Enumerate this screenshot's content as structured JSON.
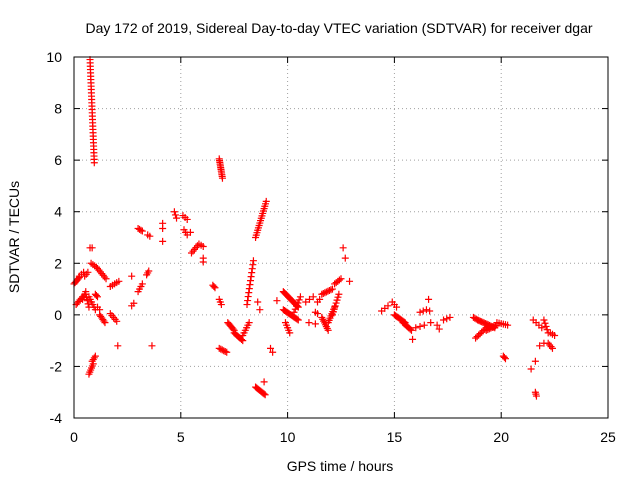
{
  "chart_data": {
    "type": "scatter",
    "title": "Day 172 of 2019, Sidereal Day-to-day VTEC variation (SDTVAR) for receiver dgar",
    "xlabel": "GPS time / hours",
    "ylabel": "SDTVAR / TECUs",
    "xlim": [
      0,
      25
    ],
    "ylim": [
      -4,
      10
    ],
    "xticks": [
      0,
      5,
      10,
      15,
      20,
      25
    ],
    "yticks": [
      -4,
      -2,
      0,
      2,
      4,
      6,
      8,
      10
    ],
    "grid": true,
    "marker": "plus",
    "color": "#ff0000",
    "segments": [
      {
        "x0": 0.0,
        "x1": 0.25,
        "y0": 1.2,
        "y1": 1.45,
        "n": 6
      },
      {
        "x0": 0.25,
        "x1": 0.45,
        "y0": 1.5,
        "y1": 1.65,
        "n": 3
      },
      {
        "x0": 0.1,
        "x1": 0.4,
        "y0": 0.4,
        "y1": 0.7,
        "n": 6
      },
      {
        "x0": 0.4,
        "x1": 0.55,
        "y0": 0.6,
        "y1": 0.9,
        "n": 4
      },
      {
        "x0": 0.55,
        "x1": 0.7,
        "y0": 0.8,
        "y1": 0.3,
        "n": 5
      },
      {
        "x0": 0.5,
        "x1": 0.65,
        "y0": 1.5,
        "y1": 1.65,
        "n": 3
      },
      {
        "x0": 0.75,
        "x1": 0.95,
        "y0": 9.9,
        "y1": 5.9,
        "n": 32
      },
      {
        "x0": 0.75,
        "x1": 0.85,
        "y0": 2.6,
        "y1": 2.6,
        "n": 2
      },
      {
        "x0": 0.7,
        "x1": 1.0,
        "y0": 0.7,
        "y1": 0.2,
        "n": 6
      },
      {
        "x0": 0.7,
        "x1": 0.9,
        "y0": -2.3,
        "y1": -1.9,
        "n": 6
      },
      {
        "x0": 0.85,
        "x1": 1.0,
        "y0": -1.8,
        "y1": -1.6,
        "n": 4
      },
      {
        "x0": 0.8,
        "x1": 1.05,
        "y0": 2.0,
        "y1": 1.85,
        "n": 4
      },
      {
        "x0": 1.0,
        "x1": 1.1,
        "y0": 0.8,
        "y1": 0.7,
        "n": 3
      },
      {
        "x0": 1.1,
        "x1": 1.5,
        "y0": 1.8,
        "y1": 1.4,
        "n": 7
      },
      {
        "x0": 1.2,
        "x1": 1.45,
        "y0": 0.0,
        "y1": -0.3,
        "n": 6
      },
      {
        "x0": 1.1,
        "x1": 1.2,
        "y0": 0.3,
        "y1": 0.2,
        "n": 2
      },
      {
        "x0": 1.7,
        "x1": 2.1,
        "y0": 1.1,
        "y1": 1.3,
        "n": 5
      },
      {
        "x0": 1.7,
        "x1": 2.0,
        "y0": 0.05,
        "y1": -0.25,
        "n": 5
      },
      {
        "x0": 2.05,
        "x1": 2.05,
        "y0": -1.2,
        "y1": -1.2,
        "n": 1
      },
      {
        "x0": 2.7,
        "x1": 2.7,
        "y0": 1.5,
        "y1": 1.5,
        "n": 1
      },
      {
        "x0": 2.7,
        "x1": 2.8,
        "y0": 0.35,
        "y1": 0.45,
        "n": 2
      },
      {
        "x0": 3.0,
        "x1": 3.2,
        "y0": 3.35,
        "y1": 3.25,
        "n": 4
      },
      {
        "x0": 3.0,
        "x1": 3.2,
        "y0": 0.9,
        "y1": 1.2,
        "n": 4
      },
      {
        "x0": 3.45,
        "x1": 3.55,
        "y0": 3.1,
        "y1": 3.05,
        "n": 2
      },
      {
        "x0": 3.4,
        "x1": 3.5,
        "y0": 1.55,
        "y1": 1.7,
        "n": 3
      },
      {
        "x0": 3.65,
        "x1": 3.65,
        "y0": -1.2,
        "y1": -1.2,
        "n": 1
      },
      {
        "x0": 4.15,
        "x1": 4.15,
        "y0": 3.55,
        "y1": 3.55,
        "n": 1
      },
      {
        "x0": 4.15,
        "x1": 4.15,
        "y0": 3.35,
        "y1": 3.35,
        "n": 1
      },
      {
        "x0": 4.15,
        "x1": 4.15,
        "y0": 2.85,
        "y1": 2.85,
        "n": 1
      },
      {
        "x0": 4.7,
        "x1": 4.8,
        "y0": 4.0,
        "y1": 3.75,
        "n": 3
      },
      {
        "x0": 5.1,
        "x1": 5.3,
        "y0": 3.85,
        "y1": 3.7,
        "n": 3
      },
      {
        "x0": 5.15,
        "x1": 5.3,
        "y0": 3.3,
        "y1": 3.1,
        "n": 3
      },
      {
        "x0": 5.5,
        "x1": 5.85,
        "y0": 2.4,
        "y1": 2.75,
        "n": 6
      },
      {
        "x0": 5.45,
        "x1": 5.45,
        "y0": 3.2,
        "y1": 3.2,
        "n": 1
      },
      {
        "x0": 5.95,
        "x1": 6.05,
        "y0": 2.7,
        "y1": 2.65,
        "n": 2
      },
      {
        "x0": 6.05,
        "x1": 6.05,
        "y0": 2.2,
        "y1": 2.05,
        "n": 2
      },
      {
        "x0": 6.5,
        "x1": 6.6,
        "y0": 1.15,
        "y1": 1.05,
        "n": 3
      },
      {
        "x0": 6.8,
        "x1": 6.95,
        "y0": 6.05,
        "y1": 5.3,
        "n": 12
      },
      {
        "x0": 6.8,
        "x1": 6.9,
        "y0": 0.6,
        "y1": 0.4,
        "n": 3
      },
      {
        "x0": 6.8,
        "x1": 7.15,
        "y0": -1.3,
        "y1": -1.45,
        "n": 6
      },
      {
        "x0": 7.2,
        "x1": 7.5,
        "y0": -0.3,
        "y1": -0.6,
        "n": 7
      },
      {
        "x0": 7.5,
        "x1": 7.9,
        "y0": -0.7,
        "y1": -1.0,
        "n": 8
      },
      {
        "x0": 7.9,
        "x1": 8.2,
        "y0": -0.8,
        "y1": -0.3,
        "n": 6
      },
      {
        "x0": 8.1,
        "x1": 8.4,
        "y0": 0.4,
        "y1": 2.1,
        "n": 12
      },
      {
        "x0": 8.5,
        "x1": 9.0,
        "y0": 3.0,
        "y1": 4.4,
        "n": 16
      },
      {
        "x0": 8.5,
        "x1": 8.95,
        "y0": -2.8,
        "y1": -3.1,
        "n": 10
      },
      {
        "x0": 8.9,
        "x1": 8.95,
        "y0": -2.6,
        "y1": -2.6,
        "n": 1
      },
      {
        "x0": 8.6,
        "x1": 8.7,
        "y0": 0.5,
        "y1": 0.2,
        "n": 2
      },
      {
        "x0": 9.2,
        "x1": 9.3,
        "y0": -1.3,
        "y1": -1.45,
        "n": 2
      },
      {
        "x0": 9.5,
        "x1": 9.5,
        "y0": 0.55,
        "y1": 0.55,
        "n": 1
      },
      {
        "x0": 9.8,
        "x1": 10.5,
        "y0": 0.9,
        "y1": 0.3,
        "n": 18
      },
      {
        "x0": 9.8,
        "x1": 10.5,
        "y0": 0.2,
        "y1": -0.2,
        "n": 14
      },
      {
        "x0": 9.9,
        "x1": 10.1,
        "y0": -0.3,
        "y1": -0.7,
        "n": 5
      },
      {
        "x0": 10.3,
        "x1": 10.6,
        "y0": 0.1,
        "y1": 0.7,
        "n": 6
      },
      {
        "x0": 10.85,
        "x1": 11.2,
        "y0": 0.5,
        "y1": 0.7,
        "n": 3
      },
      {
        "x0": 11.4,
        "x1": 11.5,
        "y0": 0.5,
        "y1": 0.6,
        "n": 2
      },
      {
        "x0": 11.0,
        "x1": 11.3,
        "y0": -0.3,
        "y1": -0.35,
        "n": 2
      },
      {
        "x0": 11.3,
        "x1": 11.4,
        "y0": 0.1,
        "y1": 0.05,
        "n": 2
      },
      {
        "x0": 11.6,
        "x1": 12.1,
        "y0": 0.8,
        "y1": 1.0,
        "n": 8
      },
      {
        "x0": 11.6,
        "x1": 11.9,
        "y0": -0.1,
        "y1": -0.6,
        "n": 8
      },
      {
        "x0": 11.9,
        "x1": 12.2,
        "y0": -0.3,
        "y1": 0.3,
        "n": 8
      },
      {
        "x0": 12.1,
        "x1": 12.4,
        "y0": 0.0,
        "y1": 0.8,
        "n": 8
      },
      {
        "x0": 12.2,
        "x1": 12.5,
        "y0": 1.2,
        "y1": 1.4,
        "n": 5
      },
      {
        "x0": 12.6,
        "x1": 12.7,
        "y0": 2.6,
        "y1": 2.2,
        "n": 2
      },
      {
        "x0": 12.9,
        "x1": 12.9,
        "y0": 1.3,
        "y1": 1.3,
        "n": 1
      },
      {
        "x0": 14.4,
        "x1": 14.7,
        "y0": 0.15,
        "y1": 0.35,
        "n": 3
      },
      {
        "x0": 14.9,
        "x1": 15.1,
        "y0": 0.5,
        "y1": 0.3,
        "n": 3
      },
      {
        "x0": 15.0,
        "x1": 15.5,
        "y0": 0.0,
        "y1": -0.3,
        "n": 10
      },
      {
        "x0": 15.4,
        "x1": 15.8,
        "y0": -0.3,
        "y1": -0.6,
        "n": 8
      },
      {
        "x0": 15.85,
        "x1": 15.85,
        "y0": -0.95,
        "y1": -0.95,
        "n": 1
      },
      {
        "x0": 16.0,
        "x1": 16.4,
        "y0": -0.5,
        "y1": -0.4,
        "n": 3
      },
      {
        "x0": 16.2,
        "x1": 16.5,
        "y0": 0.1,
        "y1": 0.2,
        "n": 3
      },
      {
        "x0": 16.6,
        "x1": 16.7,
        "y0": 0.6,
        "y1": -0.3,
        "n": 3
      },
      {
        "x0": 17.0,
        "x1": 17.1,
        "y0": -0.4,
        "y1": -0.55,
        "n": 2
      },
      {
        "x0": 17.3,
        "x1": 17.6,
        "y0": -0.2,
        "y1": -0.1,
        "n": 3
      },
      {
        "x0": 18.7,
        "x1": 18.9,
        "y0": -0.1,
        "y1": -0.2,
        "n": 4
      },
      {
        "x0": 18.8,
        "x1": 19.3,
        "y0": -0.9,
        "y1": -0.5,
        "n": 8
      },
      {
        "x0": 18.9,
        "x1": 19.7,
        "y0": -0.2,
        "y1": -0.5,
        "n": 14
      },
      {
        "x0": 19.3,
        "x1": 19.8,
        "y0": -0.6,
        "y1": -0.4,
        "n": 8
      },
      {
        "x0": 19.8,
        "x1": 20.3,
        "y0": -0.3,
        "y1": -0.4,
        "n": 6
      },
      {
        "x0": 20.1,
        "x1": 20.2,
        "y0": -1.6,
        "y1": -1.7,
        "n": 3
      },
      {
        "x0": 21.4,
        "x1": 21.4,
        "y0": -2.1,
        "y1": -2.1,
        "n": 1
      },
      {
        "x0": 21.6,
        "x1": 21.6,
        "y0": -1.8,
        "y1": -1.8,
        "n": 1
      },
      {
        "x0": 21.6,
        "x1": 21.65,
        "y0": -3.0,
        "y1": -3.15,
        "n": 3
      },
      {
        "x0": 21.5,
        "x1": 21.9,
        "y0": -0.2,
        "y1": -0.5,
        "n": 4
      },
      {
        "x0": 21.8,
        "x1": 22.0,
        "y0": -1.2,
        "y1": -1.1,
        "n": 2
      },
      {
        "x0": 22.0,
        "x1": 22.2,
        "y0": -0.2,
        "y1": -0.7,
        "n": 5
      },
      {
        "x0": 22.2,
        "x1": 22.4,
        "y0": -1.1,
        "y1": -1.3,
        "n": 4
      },
      {
        "x0": 22.3,
        "x1": 22.5,
        "y0": -0.7,
        "y1": -0.8,
        "n": 3
      }
    ]
  }
}
